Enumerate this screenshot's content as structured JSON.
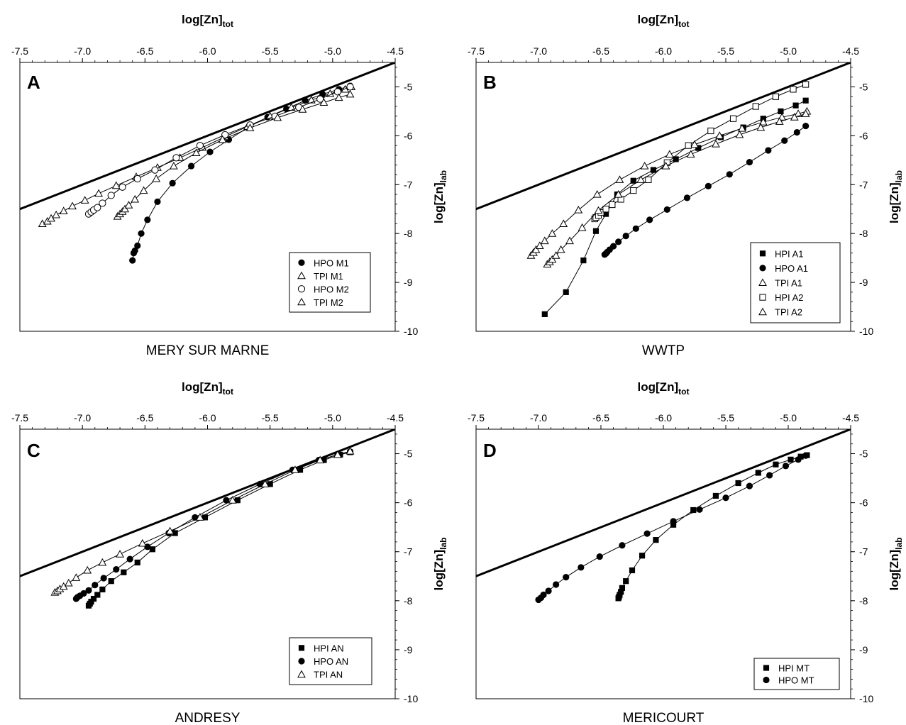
{
  "figure": {
    "x_axis_title": "log[Zn]",
    "x_axis_sub": "tot",
    "y_axis_title": "log[Zn]",
    "y_axis_sub": "lab"
  },
  "chart_data": [
    {
      "type": "scatter",
      "panel": "A",
      "caption": "MERY SUR MARNE",
      "xlim": [
        -7.5,
        -4.5
      ],
      "ylim": [
        -10,
        -4.5
      ],
      "x_ticks": [
        "-7.5",
        "-7.0",
        "-6.5",
        "-6.0",
        "-5.5",
        "-5.0",
        "-4.5"
      ],
      "y_ticks": [
        "-5",
        "-6",
        "-7",
        "-8",
        "-9",
        "-10"
      ],
      "reference_line": {
        "x": [
          -7.5,
          -4.5
        ],
        "y": [
          -7.5,
          -4.5
        ]
      },
      "series": [
        {
          "name": "HPO M1",
          "marker": "circle-filled",
          "x": [
            -6.6,
            -6.59,
            -6.58,
            -6.56,
            -6.53,
            -6.48,
            -6.4,
            -6.28,
            -6.13,
            -5.98,
            -5.83,
            -5.67,
            -5.52,
            -5.37,
            -5.22,
            -5.08,
            -4.95,
            -4.86
          ],
          "y": [
            -8.55,
            -8.4,
            -8.35,
            -8.25,
            -8.0,
            -7.72,
            -7.35,
            -6.97,
            -6.62,
            -6.33,
            -6.08,
            -5.82,
            -5.62,
            -5.45,
            -5.28,
            -5.15,
            -5.05,
            -4.98
          ]
        },
        {
          "name": "TPI M1",
          "marker": "triangle-open",
          "x": [
            -7.32,
            -7.28,
            -7.25,
            -7.21,
            -7.15,
            -7.08,
            -6.98,
            -6.87,
            -6.73,
            -6.57,
            -6.4,
            -6.22,
            -6.04,
            -5.86,
            -5.68,
            -5.5,
            -5.33,
            -5.17,
            -5.02,
            -4.9,
            -4.85
          ],
          "y": [
            -7.8,
            -7.75,
            -7.69,
            -7.62,
            -7.54,
            -7.44,
            -7.32,
            -7.18,
            -7.02,
            -6.84,
            -6.65,
            -6.45,
            -6.24,
            -6.02,
            -5.81,
            -5.6,
            -5.42,
            -5.27,
            -5.14,
            -5.05,
            -5.0
          ]
        },
        {
          "name": "HPO M2",
          "marker": "circle-open",
          "x": [
            -6.95,
            -6.93,
            -6.91,
            -6.88,
            -6.84,
            -6.77,
            -6.68,
            -6.56,
            -6.42,
            -6.25,
            -6.06,
            -5.86,
            -5.66,
            -5.46,
            -5.27,
            -5.1,
            -4.96,
            -4.86
          ],
          "y": [
            -7.6,
            -7.56,
            -7.52,
            -7.47,
            -7.38,
            -7.22,
            -7.05,
            -6.88,
            -6.7,
            -6.45,
            -6.2,
            -5.98,
            -5.78,
            -5.6,
            -5.42,
            -5.25,
            -5.1,
            -5.0
          ]
        },
        {
          "name": "TPI M2",
          "marker": "triangle-open",
          "x": [
            -6.72,
            -6.7,
            -6.68,
            -6.66,
            -6.63,
            -6.58,
            -6.51,
            -6.41,
            -6.27,
            -6.09,
            -5.88,
            -5.66,
            -5.44,
            -5.24,
            -5.07,
            -4.95,
            -4.86
          ],
          "y": [
            -7.65,
            -7.6,
            -7.55,
            -7.5,
            -7.42,
            -7.3,
            -7.12,
            -6.88,
            -6.62,
            -6.35,
            -6.08,
            -5.84,
            -5.63,
            -5.46,
            -5.32,
            -5.22,
            -5.15
          ]
        }
      ]
    },
    {
      "type": "scatter",
      "panel": "B",
      "caption": "WWTP",
      "xlim": [
        -7.5,
        -4.5
      ],
      "ylim": [
        -10,
        -4.5
      ],
      "x_ticks": [
        "-7.5",
        "-7.0",
        "-6.5",
        "-6.0",
        "-5.5",
        "-5.0",
        "-4.5"
      ],
      "y_ticks": [
        "-5",
        "-6",
        "-7",
        "-8",
        "-9",
        "-10"
      ],
      "reference_line": {
        "x": [
          -7.5,
          -4.5
        ],
        "y": [
          -7.5,
          -4.5
        ]
      },
      "series": [
        {
          "name": "HPI A1",
          "marker": "square-filled",
          "x": [
            -6.95,
            -6.78,
            -6.64,
            -6.54,
            -6.46,
            -6.37,
            -6.24,
            -6.08,
            -5.9,
            -5.72,
            -5.54,
            -5.36,
            -5.2,
            -5.06,
            -4.94,
            -4.86
          ],
          "y": [
            -9.65,
            -9.2,
            -8.55,
            -7.95,
            -7.6,
            -7.2,
            -6.92,
            -6.7,
            -6.48,
            -6.25,
            -6.03,
            -5.83,
            -5.65,
            -5.5,
            -5.38,
            -5.28
          ]
        },
        {
          "name": "HPO A1",
          "marker": "circle-filled",
          "x": [
            -6.47,
            -6.46,
            -6.45,
            -6.43,
            -6.4,
            -6.36,
            -6.3,
            -6.22,
            -6.11,
            -5.97,
            -5.81,
            -5.64,
            -5.47,
            -5.31,
            -5.16,
            -5.03,
            -4.93,
            -4.86
          ],
          "y": [
            -8.43,
            -8.41,
            -8.38,
            -8.33,
            -8.26,
            -8.17,
            -8.05,
            -7.9,
            -7.72,
            -7.51,
            -7.27,
            -7.03,
            -6.79,
            -6.54,
            -6.3,
            -6.1,
            -5.93,
            -5.8
          ]
        },
        {
          "name": "TPI A1",
          "marker": "triangle-open",
          "x": [
            -7.06,
            -7.04,
            -7.02,
            -6.99,
            -6.95,
            -6.89,
            -6.8,
            -6.68,
            -6.53,
            -6.35,
            -6.15,
            -5.95,
            -5.75,
            -5.55,
            -5.37,
            -5.2,
            -5.05,
            -4.92,
            -4.85
          ],
          "y": [
            -8.45,
            -8.39,
            -8.33,
            -8.25,
            -8.15,
            -8.0,
            -7.8,
            -7.52,
            -7.2,
            -6.9,
            -6.62,
            -6.38,
            -6.18,
            -6.0,
            -5.85,
            -5.72,
            -5.62,
            -5.55,
            -5.5
          ]
        },
        {
          "name": "HPI A2",
          "marker": "square-open",
          "x": [
            -6.55,
            -6.54,
            -6.52,
            -6.5,
            -6.46,
            -6.41,
            -6.34,
            -6.24,
            -6.12,
            -5.97,
            -5.8,
            -5.62,
            -5.44,
            -5.26,
            -5.1,
            -4.96,
            -4.86
          ],
          "y": [
            -7.7,
            -7.67,
            -7.63,
            -7.57,
            -7.5,
            -7.41,
            -7.3,
            -7.12,
            -6.9,
            -6.55,
            -6.2,
            -5.9,
            -5.65,
            -5.4,
            -5.2,
            -5.05,
            -4.95
          ]
        },
        {
          "name": "TPI A2",
          "marker": "triangle-open",
          "x": [
            -6.93,
            -6.91,
            -6.89,
            -6.86,
            -6.82,
            -6.75,
            -6.65,
            -6.52,
            -6.36,
            -6.18,
            -5.98,
            -5.78,
            -5.58,
            -5.39,
            -5.22,
            -5.07,
            -4.95,
            -4.86
          ],
          "y": [
            -8.63,
            -8.58,
            -8.53,
            -8.45,
            -8.33,
            -8.15,
            -7.88,
            -7.53,
            -7.2,
            -6.9,
            -6.62,
            -6.38,
            -6.17,
            -5.98,
            -5.83,
            -5.71,
            -5.62,
            -5.55
          ]
        }
      ]
    },
    {
      "type": "scatter",
      "panel": "C",
      "caption": "ANDRESY",
      "xlim": [
        -7.5,
        -4.5
      ],
      "ylim": [
        -10,
        -4.5
      ],
      "x_ticks": [
        "-7.5",
        "-7.0",
        "-6.5",
        "-6.0",
        "-5.5",
        "-5.0",
        "-4.5"
      ],
      "y_ticks": [
        "-5",
        "-6",
        "-7",
        "-8",
        "-9",
        "-10"
      ],
      "reference_line": {
        "x": [
          -7.5,
          -4.5
        ],
        "y": [
          -7.5,
          -4.5
        ]
      },
      "series": [
        {
          "name": "HPI AN",
          "marker": "square-filled",
          "x": [
            -6.95,
            -6.94,
            -6.93,
            -6.91,
            -6.88,
            -6.84,
            -6.77,
            -6.67,
            -6.56,
            -6.44,
            -6.26,
            -6.02,
            -5.76,
            -5.5,
            -5.26,
            -5.07,
            -4.94,
            -4.86
          ],
          "y": [
            -8.1,
            -8.06,
            -8.02,
            -7.96,
            -7.88,
            -7.77,
            -7.6,
            -7.42,
            -7.22,
            -6.95,
            -6.62,
            -6.3,
            -5.95,
            -5.62,
            -5.33,
            -5.13,
            -5.02,
            -4.97
          ]
        },
        {
          "name": "HPO AN",
          "marker": "circle-filled",
          "x": [
            -7.05,
            -7.04,
            -7.02,
            -6.99,
            -6.95,
            -6.9,
            -6.83,
            -6.73,
            -6.62,
            -6.48,
            -6.31,
            -6.1,
            -5.85,
            -5.58,
            -5.32,
            -5.11,
            -4.96,
            -4.86
          ],
          "y": [
            -7.96,
            -7.93,
            -7.9,
            -7.85,
            -7.79,
            -7.68,
            -7.54,
            -7.36,
            -7.15,
            -6.9,
            -6.62,
            -6.3,
            -5.95,
            -5.62,
            -5.33,
            -5.13,
            -5.02,
            -4.96
          ]
        },
        {
          "name": "TPI AN",
          "marker": "triangle-open",
          "x": [
            -7.22,
            -7.2,
            -7.18,
            -7.15,
            -7.11,
            -7.05,
            -6.96,
            -6.84,
            -6.7,
            -6.52,
            -6.3,
            -6.06,
            -5.8,
            -5.54,
            -5.3,
            -5.1,
            -4.96,
            -4.86
          ],
          "y": [
            -7.83,
            -7.8,
            -7.76,
            -7.71,
            -7.64,
            -7.53,
            -7.38,
            -7.22,
            -7.05,
            -6.83,
            -6.58,
            -6.3,
            -5.95,
            -5.62,
            -5.33,
            -5.13,
            -5.02,
            -4.95
          ]
        }
      ]
    },
    {
      "type": "scatter",
      "panel": "D",
      "caption": "MERICOURT",
      "xlim": [
        -7.5,
        -4.5
      ],
      "ylim": [
        -10,
        -4.5
      ],
      "x_ticks": [
        "-7.5",
        "-7.0",
        "-6.5",
        "-6.0",
        "-5.5",
        "-5.0",
        "-4.5"
      ],
      "y_ticks": [
        "-5",
        "-6",
        "-7",
        "-8",
        "-9",
        "-10"
      ],
      "reference_line": {
        "x": [
          -7.5,
          -4.5
        ],
        "y": [
          -7.5,
          -4.5
        ]
      },
      "series": [
        {
          "name": "HPI MT",
          "marker": "square-filled",
          "x": [
            -6.36,
            -6.355,
            -6.35,
            -6.34,
            -6.33,
            -6.3,
            -6.25,
            -6.17,
            -6.06,
            -5.92,
            -5.76,
            -5.58,
            -5.4,
            -5.24,
            -5.1,
            -4.98,
            -4.9,
            -4.85
          ],
          "y": [
            -7.95,
            -7.92,
            -7.88,
            -7.82,
            -7.74,
            -7.6,
            -7.38,
            -7.08,
            -6.76,
            -6.45,
            -6.15,
            -5.86,
            -5.6,
            -5.39,
            -5.22,
            -5.12,
            -5.06,
            -5.03
          ]
        },
        {
          "name": "HPO MT",
          "marker": "circle-filled",
          "x": [
            -7.0,
            -6.98,
            -6.96,
            -6.92,
            -6.86,
            -6.78,
            -6.66,
            -6.51,
            -6.33,
            -6.13,
            -5.92,
            -5.71,
            -5.5,
            -5.31,
            -5.15,
            -5.02,
            -4.92,
            -4.86
          ],
          "y": [
            -7.98,
            -7.94,
            -7.88,
            -7.8,
            -7.67,
            -7.52,
            -7.32,
            -7.1,
            -6.87,
            -6.63,
            -6.38,
            -6.14,
            -5.9,
            -5.66,
            -5.44,
            -5.25,
            -5.12,
            -5.04
          ]
        }
      ]
    }
  ]
}
